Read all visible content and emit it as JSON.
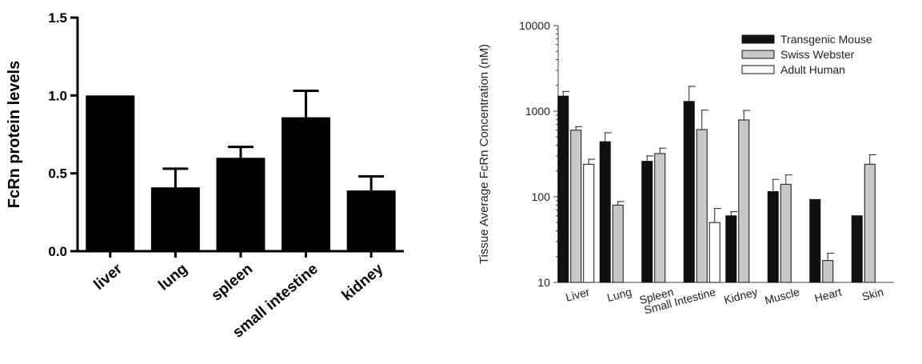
{
  "chart_data": [
    {
      "type": "bar",
      "ylabel": "FcRn protein levels",
      "ylim": [
        0,
        1.5
      ],
      "yticks": [
        "0.0",
        "0.5",
        "1.0",
        "1.5"
      ],
      "categories": [
        "liver",
        "lung",
        "spleen",
        "small intestine",
        "kidney"
      ],
      "values": [
        1.0,
        0.41,
        0.6,
        0.86,
        0.39
      ],
      "errors": [
        0,
        0.12,
        0.07,
        0.17,
        0.09
      ],
      "color": "#000000"
    },
    {
      "type": "bar",
      "ylabel": "Tissue Average FcRn Concentration (nM)",
      "yscale": "log",
      "ylim": [
        10,
        10000
      ],
      "yticks": [
        "10",
        "100",
        "1000",
        "10000"
      ],
      "categories": [
        "Liver",
        "Lung",
        "Spleen",
        "Small Intestine",
        "Kidney",
        "Muscle",
        "Heart",
        "Skin"
      ],
      "legend": "top-right",
      "series": [
        {
          "name": "Transgenic Mouse",
          "color": "#111111",
          "values": [
            1500,
            440,
            260,
            1300,
            60,
            115,
            93,
            60
          ],
          "errors": [
            1700,
            560,
            300,
            1950,
            67,
            160,
            null,
            null
          ]
        },
        {
          "name": "Swiss Webster",
          "color": "#c8c8c8",
          "values": [
            600,
            80,
            320,
            610,
            790,
            140,
            18,
            240
          ],
          "errors": [
            660,
            88,
            370,
            1030,
            1020,
            180,
            22,
            310
          ]
        },
        {
          "name": "Adult Human",
          "color": "#ffffff",
          "values": [
            240,
            null,
            null,
            50,
            null,
            null,
            null,
            null
          ],
          "errors": [
            275,
            null,
            null,
            73,
            null,
            null,
            null,
            null
          ]
        }
      ]
    }
  ]
}
